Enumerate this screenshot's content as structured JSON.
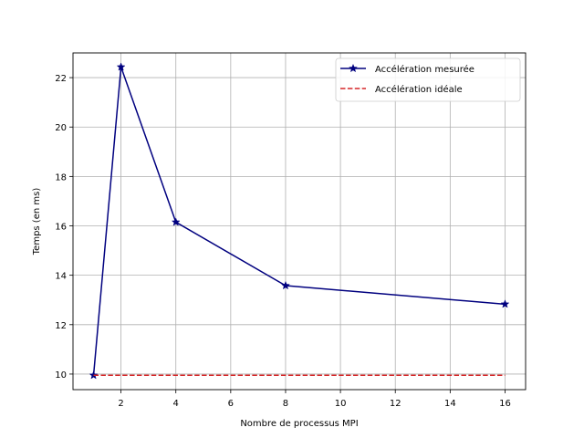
{
  "chart_data": {
    "type": "line",
    "xlabel": "Nombre de processus MPI",
    "ylabel": "Temps (en ms)",
    "xlim": [
      0.25,
      16.75
    ],
    "ylim": [
      9.37,
      23.0
    ],
    "x_ticks": [
      2,
      4,
      6,
      8,
      10,
      12,
      14,
      16
    ],
    "y_ticks": [
      10,
      12,
      14,
      16,
      18,
      20,
      22
    ],
    "grid": true,
    "legend_position": "top-right",
    "series": [
      {
        "name": "Accélération mesurée",
        "x": [
          1,
          2,
          4,
          8,
          16
        ],
        "y": [
          9.95,
          22.43,
          16.15,
          13.58,
          12.83
        ],
        "color": "#00007f",
        "line_style": "solid",
        "marker": "star"
      },
      {
        "name": "Accélération idéale",
        "x": [
          1,
          16
        ],
        "y": [
          9.95,
          9.95
        ],
        "color": "#d62728",
        "line_style": "dashed",
        "marker": "none"
      }
    ]
  }
}
